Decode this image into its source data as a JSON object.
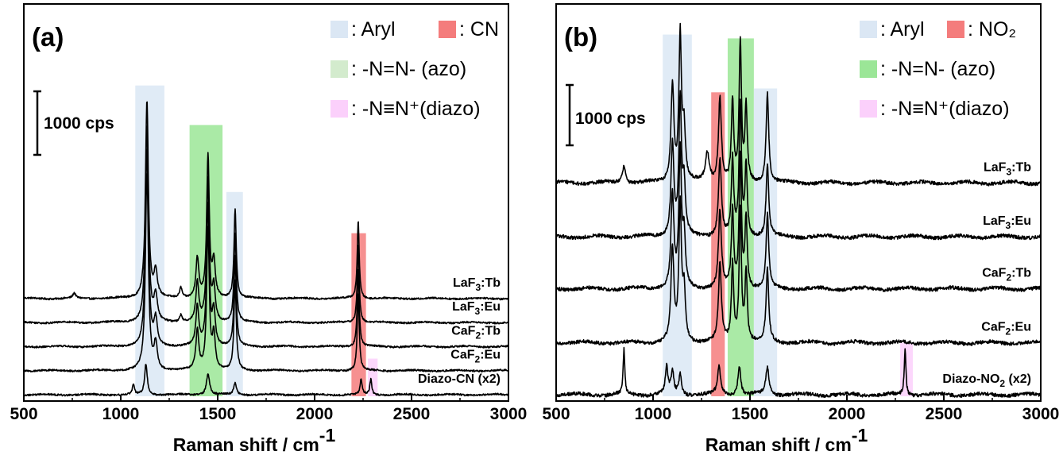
{
  "chart_data": [
    {
      "type": "line",
      "panel_label": "(a)",
      "xlabel": "Raman shift / cm",
      "xlabel_sup": "-1",
      "xlim": [
        500,
        3000
      ],
      "xticks": [
        "500",
        "1000",
        "1500",
        "2000",
        "2500",
        "3000"
      ],
      "scale_bar": "1000 cps",
      "legend": [
        {
          "text": ": Aryl",
          "color": "#dbe7f4"
        },
        {
          "text": ": CN",
          "color": "#f47c7c"
        },
        {
          "text": ": -N=N- (azo)",
          "color": "#d3ebcd"
        },
        {
          "text": ": -N≡N⁺(diazo)",
          "color": "#fbd0fb"
        }
      ],
      "bands": [
        {
          "from": 1075,
          "to": 1225,
          "color": "#dbe7f4",
          "top": 1800
        },
        {
          "from": 1355,
          "to": 1525,
          "color": "#9be697",
          "top": 1570
        },
        {
          "from": 1545,
          "to": 1630,
          "color": "#dbe7f4",
          "top": 1180
        },
        {
          "from": 2190,
          "to": 2265,
          "color": "#f47c7c",
          "top": 940
        },
        {
          "from": 2275,
          "to": 2325,
          "color": "#fbd0fb",
          "top": 210
        }
      ],
      "series": [
        {
          "name": "LaF3:Tb",
          "label_main": "LaF",
          "label_sub": "3",
          "label_end": ":Tb",
          "offset": 560,
          "peaks": [
            [
              1135,
              1150,
              9
            ],
            [
              1180,
              150,
              10
            ],
            [
              1395,
              230,
              9
            ],
            [
              1450,
              820,
              8
            ],
            [
              1480,
              200,
              9
            ],
            [
              1590,
              520,
              7
            ],
            [
              2225,
              460,
              6
            ],
            [
              1310,
              60,
              8
            ],
            [
              760,
              30,
              8
            ]
          ]
        },
        {
          "name": "LaF3:Eu",
          "label_main": "LaF",
          "label_sub": "3",
          "label_end": ":Eu",
          "offset": 420,
          "peaks": [
            [
              1135,
              1150,
              9
            ],
            [
              1180,
              150,
              10
            ],
            [
              1395,
              230,
              9
            ],
            [
              1450,
              820,
              8
            ],
            [
              1480,
              200,
              9
            ],
            [
              1590,
              520,
              7
            ],
            [
              2225,
              460,
              6
            ],
            [
              1310,
              40,
              8
            ]
          ]
        },
        {
          "name": "CaF2:Tb",
          "label_main": "CaF",
          "label_sub": "2",
          "label_end": ":Tb",
          "offset": 280,
          "peaks": [
            [
              1135,
              1150,
              9
            ],
            [
              1180,
              150,
              10
            ],
            [
              1395,
              230,
              9
            ],
            [
              1450,
              820,
              8
            ],
            [
              1480,
              200,
              9
            ],
            [
              1590,
              520,
              7
            ],
            [
              2225,
              460,
              6
            ]
          ]
        },
        {
          "name": "CaF2:Eu",
          "label_main": "CaF",
          "label_sub": "2",
          "label_end": ":Eu",
          "offset": 140,
          "peaks": [
            [
              1135,
              1150,
              9
            ],
            [
              1180,
              150,
              10
            ],
            [
              1395,
              230,
              9
            ],
            [
              1450,
              820,
              8
            ],
            [
              1480,
              200,
              9
            ],
            [
              1590,
              520,
              7
            ],
            [
              2225,
              460,
              6
            ]
          ]
        },
        {
          "name": "Diazo-CN (x2)",
          "label_main": "Diazo-CN (x2)",
          "label_sub": "",
          "label_end": "",
          "offset": 0,
          "peaks": [
            [
              1065,
              60,
              6
            ],
            [
              1130,
              180,
              8
            ],
            [
              1450,
              120,
              10
            ],
            [
              1590,
              70,
              8
            ],
            [
              2240,
              90,
              6
            ],
            [
              2290,
              90,
              6
            ]
          ]
        }
      ]
    },
    {
      "type": "line",
      "panel_label": "(b)",
      "xlabel": "Raman shift / cm",
      "xlabel_sup": "-1",
      "xlim": [
        500,
        3000
      ],
      "xticks": [
        "500",
        "1000",
        "1500",
        "2000",
        "2500",
        "3000"
      ],
      "scale_bar": "1000 cps",
      "legend": [
        {
          "text": ": Aryl",
          "color": "#dbe7f4"
        },
        {
          "text": ": NO₂",
          "color": "#f47c7c"
        },
        {
          "text": ": -N=N- (azo)",
          "color": "#9be697"
        },
        {
          "text": ": -N≡N⁺(diazo)",
          "color": "#fbd0fb"
        }
      ],
      "bands": [
        {
          "from": 1050,
          "to": 1200,
          "color": "#dbe7f4",
          "top": 1870
        },
        {
          "from": 1300,
          "to": 1370,
          "color": "#f47c7c",
          "top": 1570
        },
        {
          "from": 1385,
          "to": 1520,
          "color": "#9be697",
          "top": 1850
        },
        {
          "from": 1520,
          "to": 1640,
          "color": "#dbe7f4",
          "top": 1590
        },
        {
          "from": 2275,
          "to": 2340,
          "color": "#fbd0fb",
          "top": 270
        }
      ],
      "series": [
        {
          "name": "LaF3:Tb",
          "label_main": "LaF",
          "label_sub": "3",
          "label_end": ":Tb",
          "offset": 1100,
          "peaks": [
            [
              1100,
              500,
              9
            ],
            [
              1140,
              760,
              8
            ],
            [
              1160,
              260,
              8
            ],
            [
              1345,
              440,
              9
            ],
            [
              1410,
              420,
              7
            ],
            [
              1450,
              720,
              7
            ],
            [
              1480,
              380,
              7
            ],
            [
              1590,
              470,
              8
            ],
            [
              850,
              90,
              10
            ],
            [
              1280,
              150,
              12
            ]
          ]
        },
        {
          "name": "LaF3:Eu",
          "label_main": "LaF",
          "label_sub": "3",
          "label_end": ":Eu",
          "offset": 820,
          "peaks": [
            [
              1100,
              480,
              9
            ],
            [
              1140,
              700,
              8
            ],
            [
              1160,
              250,
              8
            ],
            [
              1345,
              400,
              9
            ],
            [
              1410,
              400,
              7
            ],
            [
              1450,
              680,
              7
            ],
            [
              1480,
              360,
              7
            ],
            [
              1590,
              380,
              8
            ]
          ]
        },
        {
          "name": "CaF2:Tb",
          "label_main": "CaF",
          "label_sub": "2",
          "label_end": ":Tb",
          "offset": 550,
          "peaks": [
            [
              1100,
              480,
              9
            ],
            [
              1140,
              700,
              8
            ],
            [
              1160,
              250,
              8
            ],
            [
              1345,
              400,
              9
            ],
            [
              1410,
              400,
              7
            ],
            [
              1450,
              680,
              7
            ],
            [
              1480,
              360,
              7
            ],
            [
              1590,
              380,
              8
            ]
          ]
        },
        {
          "name": "CaF2:Eu",
          "label_main": "CaF",
          "label_sub": "2",
          "label_end": ":Eu",
          "offset": 270,
          "peaks": [
            [
              1100,
              480,
              9
            ],
            [
              1140,
              700,
              8
            ],
            [
              1160,
              250,
              8
            ],
            [
              1345,
              400,
              9
            ],
            [
              1410,
              400,
              7
            ],
            [
              1450,
              680,
              7
            ],
            [
              1480,
              360,
              7
            ],
            [
              1590,
              380,
              8
            ]
          ]
        },
        {
          "name": "Diazo-NO2 (x2)",
          "label_main": "Diazo-NO",
          "label_sub": "2",
          "label_end": " (x2)",
          "offset": 0,
          "peaks": [
            [
              850,
              230,
              5
            ],
            [
              1070,
              140,
              8
            ],
            [
              1100,
              120,
              8
            ],
            [
              1140,
              110,
              8
            ],
            [
              1340,
              150,
              9
            ],
            [
              1445,
              150,
              9
            ],
            [
              1590,
              140,
              10
            ],
            [
              2300,
              240,
              5
            ]
          ]
        }
      ]
    }
  ]
}
